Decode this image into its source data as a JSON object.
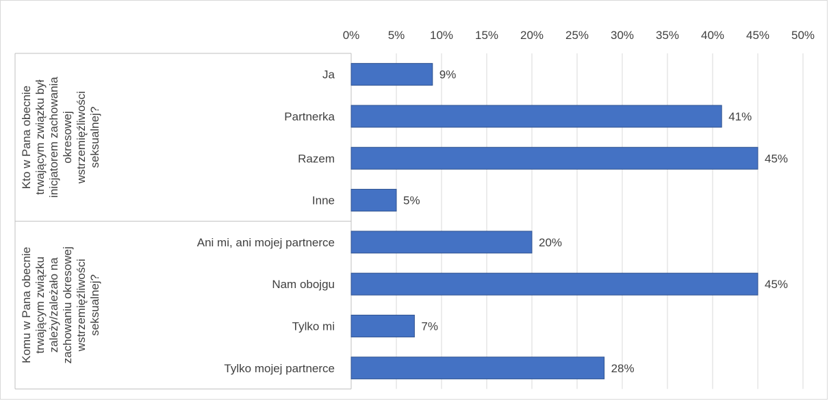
{
  "chart_data": {
    "type": "bar",
    "orientation": "horizontal",
    "x_ticks": [
      "0%",
      "5%",
      "10%",
      "15%",
      "20%",
      "25%",
      "30%",
      "35%",
      "40%",
      "45%",
      "50%"
    ],
    "xlim": [
      0,
      50
    ],
    "x_axis_position": "top",
    "grid": true,
    "bar_color": "#4472c4",
    "groups": [
      {
        "label": "Kto w Pana obecnie trwającym związku był inicjatorem zachowania okresowej wstrzemięźliwości seksualnej?",
        "categories": [
          "Ja",
          "Partnerka",
          "Razem",
          "Inne"
        ],
        "values": [
          9,
          41,
          45,
          5
        ],
        "data_labels": [
          "9%",
          "41%",
          "45%",
          "5%"
        ]
      },
      {
        "label": "Komu w Pana obecnie trwającym związku zależy/zależało na zachowaniu okresowej wstrzemięźliwości seksualnej?",
        "categories": [
          "Ani mi, ani mojej partnerce",
          "Nam obojgu",
          "Tylko mi",
          "Tylko mojej partnerce"
        ],
        "values": [
          20,
          45,
          7,
          28
        ],
        "data_labels": [
          "20%",
          "45%",
          "7%",
          "28%"
        ]
      }
    ]
  }
}
